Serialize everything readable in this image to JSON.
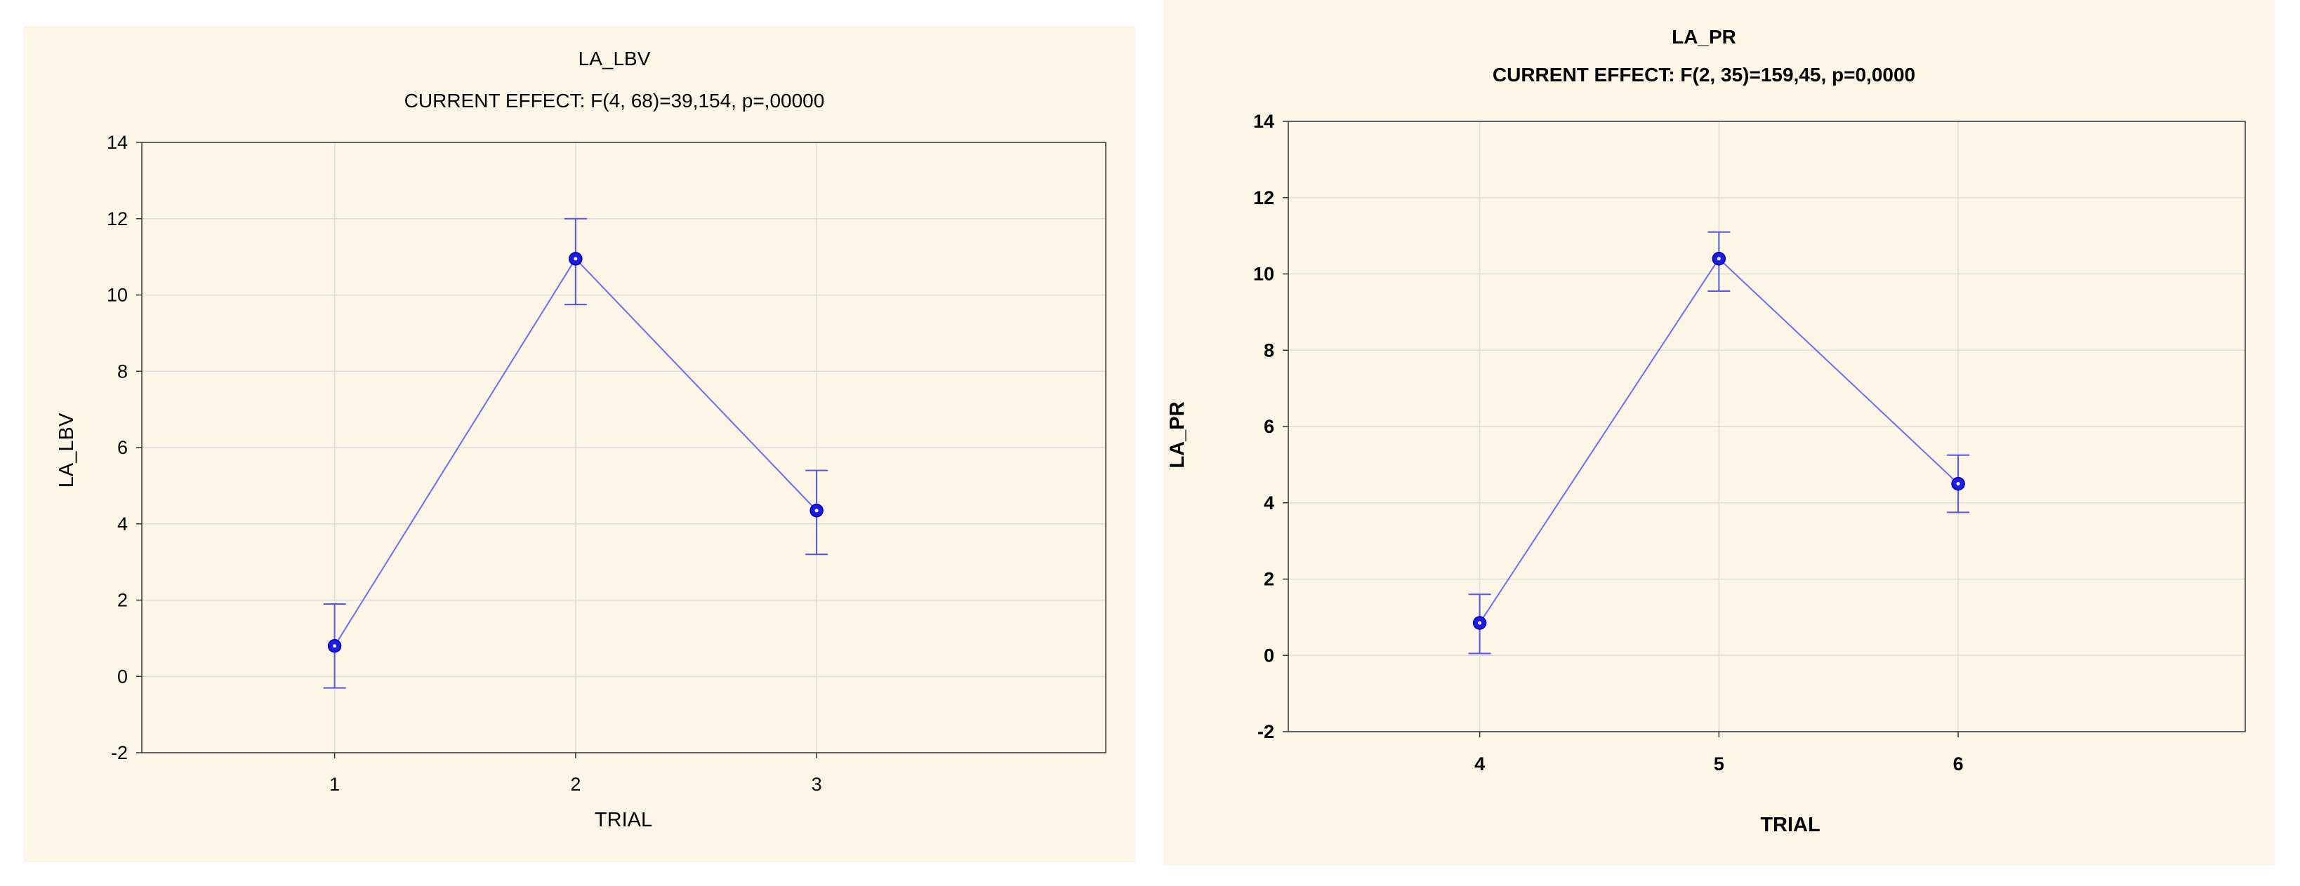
{
  "chart_data": [
    {
      "type": "line",
      "title": "LA_LBV",
      "subtitle": "CURRENT EFFECT: F(4, 68)=39,154, p=,00000",
      "xlabel": "TRIAL",
      "ylabel": "LA_LBV",
      "categories": [
        "1",
        "2",
        "3"
      ],
      "values": [
        0.8,
        10.95,
        4.35
      ],
      "error_low": [
        -0.3,
        9.75,
        3.2
      ],
      "error_high": [
        1.9,
        12.0,
        5.4
      ],
      "yticks": [
        "14",
        "12",
        "10",
        "8",
        "6",
        "4",
        "2",
        "0",
        "-2"
      ],
      "ylim": [
        -2,
        14
      ],
      "grid": true,
      "colors": {
        "line": "#6b6bff",
        "marker": "#1a1aee",
        "error_bar": "#5555ee",
        "background": "#fdf6e6"
      }
    },
    {
      "type": "line",
      "title": "LA_PR",
      "subtitle": "CURRENT EFFECT: F(2, 35)=159,45, p=0,0000",
      "xlabel": "TRIAL",
      "ylabel": "LA_PR",
      "categories": [
        "4",
        "5",
        "6"
      ],
      "values": [
        0.85,
        10.4,
        4.5
      ],
      "error_low": [
        0.05,
        9.55,
        3.75
      ],
      "error_high": [
        1.6,
        11.1,
        5.25
      ],
      "yticks": [
        "14",
        "12",
        "10",
        "8",
        "6",
        "4",
        "2",
        "0",
        "-2"
      ],
      "ylim": [
        -2,
        14
      ],
      "grid": true,
      "colors": {
        "line": "#6b6bff",
        "marker": "#1a1aee",
        "error_bar": "#5555ee",
        "background": "#fdf6e6"
      }
    }
  ]
}
